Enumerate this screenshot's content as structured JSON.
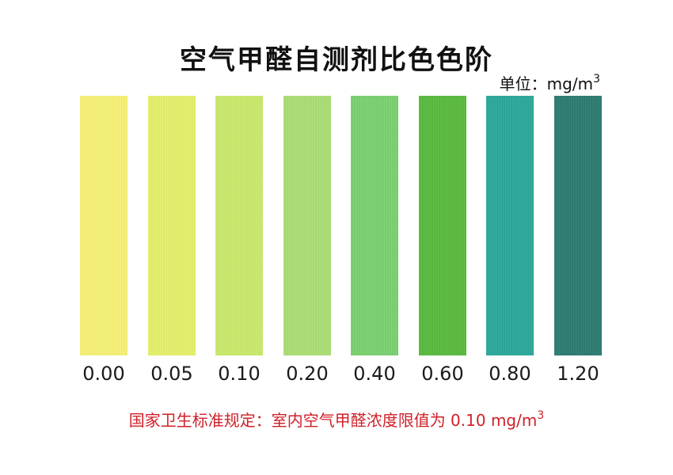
{
  "title": "空气甲醛自测剂比色色阶",
  "unit": {
    "label": "单位：",
    "value_base": "mg/m",
    "value_sup": "3"
  },
  "swatches": [
    {
      "label": "0.00",
      "color": "#f5f075"
    },
    {
      "label": "0.05",
      "color": "#e4ef6a"
    },
    {
      "label": "0.10",
      "color": "#c9e86a"
    },
    {
      "label": "0.20",
      "color": "#a9dd73"
    },
    {
      "label": "0.40",
      "color": "#79d06e"
    },
    {
      "label": "0.60",
      "color": "#58b93e"
    },
    {
      "label": "0.80",
      "color": "#2aa79a"
    },
    {
      "label": "1.20",
      "color": "#2b7a70"
    }
  ],
  "note": {
    "text": "国家卫生标准规定：室内空气甲醛浓度限值为 0.10 mg/m",
    "sup": "3",
    "color": "#d0202a"
  }
}
